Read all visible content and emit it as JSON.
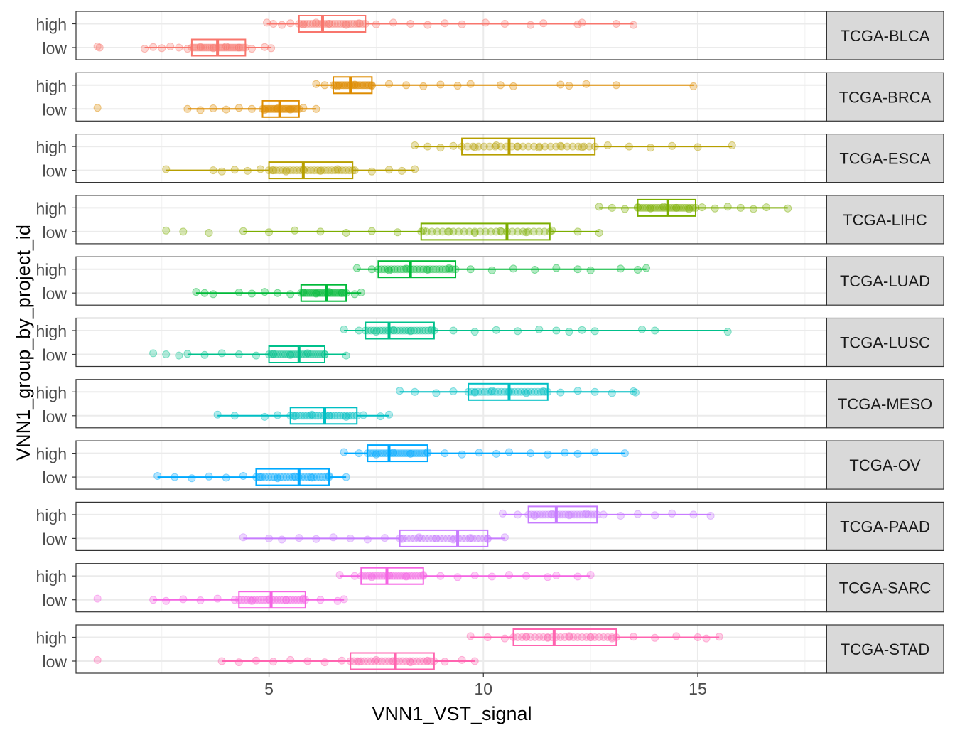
{
  "chart_data": {
    "type": "boxplot",
    "xlabel": "VNN1_VST_signal",
    "ylabel": "VNN1_group_by_project_id",
    "xlim": [
      0.5,
      18.0
    ],
    "xticks": [
      5,
      10,
      15
    ],
    "groups": [
      "high",
      "low"
    ],
    "grid": true,
    "facets": [
      {
        "project": "TCGA-BLCA",
        "color": "#F8766D",
        "high": {
          "q1": 5.7,
          "median": 6.25,
          "q3": 7.25,
          "min": 4.95,
          "max": 13.5,
          "pts": [
            4.95,
            5.1,
            5.3,
            5.5,
            5.8,
            6.1,
            6.4,
            6.8,
            7.1,
            7.5,
            7.9,
            8.3,
            8.7,
            9.1,
            9.5,
            10.05,
            10.5,
            11.1,
            11.4,
            12.2,
            12.3,
            13.1,
            13.5
          ]
        },
        "low": {
          "q1": 3.2,
          "median": 3.8,
          "q3": 4.45,
          "min": 2.1,
          "max": 5.05,
          "pts": [
            1.0,
            1.05,
            2.1,
            2.3,
            2.5,
            2.7,
            2.9,
            3.1,
            3.4,
            3.7,
            4.0,
            4.3,
            4.6,
            4.9,
            5.05
          ]
        }
      },
      {
        "project": "TCGA-BRCA",
        "color": "#DE8C00",
        "high": {
          "q1": 6.5,
          "median": 6.9,
          "q3": 7.4,
          "min": 6.1,
          "max": 14.9,
          "pts": [
            6.1,
            6.3,
            6.6,
            7.0,
            7.4,
            7.8,
            8.2,
            8.6,
            9.0,
            9.4,
            9.7,
            10.4,
            10.7,
            11.8,
            12.0,
            12.4,
            13.1,
            14.9
          ]
        },
        "low": {
          "q1": 4.85,
          "median": 5.25,
          "q3": 5.7,
          "min": 3.1,
          "max": 6.1,
          "pts": [
            1.0,
            3.1,
            3.4,
            3.7,
            4.0,
            4.3,
            4.6,
            4.9,
            5.2,
            5.5,
            5.8,
            6.1
          ]
        },
        "low_min_outlier": 1.0
      },
      {
        "project": "TCGA-ESCA",
        "color": "#B79F00",
        "high": {
          "q1": 9.5,
          "median": 10.6,
          "q3": 12.6,
          "min": 8.4,
          "max": 15.8,
          "pts": [
            8.4,
            8.7,
            9.0,
            9.3,
            9.8,
            10.3,
            10.8,
            11.3,
            11.8,
            12.3,
            12.9,
            13.4,
            13.9,
            14.4,
            15.0,
            15.8
          ]
        },
        "low": {
          "q1": 5.0,
          "median": 5.8,
          "q3": 6.95,
          "min": 2.6,
          "max": 8.4,
          "pts": [
            2.6,
            3.7,
            3.9,
            4.2,
            4.5,
            4.8,
            5.1,
            5.4,
            5.8,
            6.2,
            6.6,
            7.0,
            7.4,
            7.8,
            8.1,
            8.4
          ]
        }
      },
      {
        "project": "TCGA-LIHC",
        "color": "#7CAE00",
        "high": {
          "q1": 13.6,
          "median": 14.3,
          "q3": 14.95,
          "min": 12.7,
          "max": 17.1,
          "pts": [
            12.7,
            13.0,
            13.3,
            13.6,
            13.9,
            14.2,
            14.5,
            14.8,
            15.1,
            15.4,
            15.7,
            16.0,
            16.3,
            16.6,
            17.1
          ]
        },
        "low": {
          "q1": 8.55,
          "median": 10.55,
          "q3": 11.55,
          "min": 4.4,
          "max": 12.7,
          "pts": [
            2.6,
            3.0,
            3.6,
            4.4,
            5.0,
            5.6,
            6.2,
            6.8,
            7.4,
            8.0,
            8.6,
            9.2,
            9.8,
            10.4,
            11.0,
            11.6,
            12.2,
            12.7
          ]
        }
      },
      {
        "project": "TCGA-LUAD",
        "color": "#00BA38",
        "high": {
          "q1": 7.55,
          "median": 8.3,
          "q3": 9.35,
          "min": 7.05,
          "max": 13.8,
          "pts": [
            7.05,
            7.4,
            7.8,
            8.2,
            8.7,
            9.2,
            9.7,
            10.2,
            10.7,
            11.2,
            11.7,
            12.2,
            12.5,
            13.2,
            13.6,
            13.8
          ]
        },
        "low": {
          "q1": 5.75,
          "median": 6.35,
          "q3": 6.8,
          "min": 3.3,
          "max": 7.15,
          "pts": [
            3.3,
            3.5,
            3.7,
            4.3,
            4.6,
            4.9,
            5.2,
            5.5,
            5.8,
            6.1,
            6.4,
            6.7,
            7.0,
            7.15
          ]
        }
      },
      {
        "project": "TCGA-LUSC",
        "color": "#00C08B",
        "high": {
          "q1": 7.25,
          "median": 7.8,
          "q3": 8.85,
          "min": 6.75,
          "max": 15.7,
          "pts": [
            6.75,
            7.1,
            7.5,
            7.9,
            8.3,
            8.8,
            9.3,
            9.8,
            10.3,
            10.8,
            11.3,
            11.7,
            12.0,
            12.3,
            12.6,
            13.7,
            14.0,
            15.7
          ]
        },
        "low": {
          "q1": 5.0,
          "median": 5.7,
          "q3": 6.3,
          "min": 3.1,
          "max": 6.8,
          "pts": [
            2.3,
            2.6,
            2.9,
            3.1,
            3.5,
            3.9,
            4.3,
            4.7,
            5.1,
            5.5,
            5.9,
            6.3,
            6.8
          ]
        }
      },
      {
        "project": "TCGA-MESO",
        "color": "#00BFC4",
        "high": {
          "q1": 9.65,
          "median": 10.6,
          "q3": 11.5,
          "min": 8.05,
          "max": 13.55,
          "pts": [
            8.05,
            8.4,
            8.9,
            9.3,
            9.8,
            10.2,
            10.6,
            11.0,
            11.4,
            11.8,
            12.2,
            12.6,
            13.0,
            13.5,
            13.55
          ]
        },
        "low": {
          "q1": 5.5,
          "median": 6.3,
          "q3": 7.05,
          "min": 3.8,
          "max": 7.8,
          "pts": [
            3.8,
            4.2,
            4.9,
            5.2,
            5.6,
            6.0,
            6.4,
            6.8,
            7.2,
            7.6,
            7.8
          ]
        }
      },
      {
        "project": "TCGA-OV",
        "color": "#00A9FF",
        "high": {
          "q1": 7.3,
          "median": 7.8,
          "q3": 8.7,
          "min": 6.75,
          "max": 13.3,
          "pts": [
            6.75,
            7.1,
            7.5,
            7.9,
            8.3,
            8.7,
            9.1,
            9.5,
            9.9,
            10.3,
            10.6,
            11.1,
            11.5,
            11.9,
            12.2,
            12.6,
            13.3
          ]
        },
        "low": {
          "q1": 4.7,
          "median": 5.7,
          "q3": 6.4,
          "min": 2.4,
          "max": 6.8,
          "pts": [
            2.4,
            2.8,
            3.2,
            3.6,
            4.0,
            4.4,
            4.8,
            5.2,
            5.6,
            6.0,
            6.4,
            6.8
          ]
        }
      },
      {
        "project": "TCGA-PAAD",
        "color": "#C77CFF",
        "high": {
          "q1": 11.05,
          "median": 11.7,
          "q3": 12.65,
          "min": 10.45,
          "max": 15.3,
          "pts": [
            10.45,
            10.8,
            11.2,
            11.6,
            12.0,
            12.4,
            12.8,
            13.2,
            13.6,
            14.0,
            14.4,
            14.9,
            15.3
          ]
        },
        "low": {
          "q1": 8.05,
          "median": 9.4,
          "q3": 10.1,
          "min": 4.4,
          "max": 10.5,
          "pts": [
            4.4,
            5.0,
            5.3,
            5.7,
            6.1,
            6.5,
            6.9,
            7.3,
            7.7,
            8.1,
            8.5,
            8.9,
            9.3,
            9.7,
            10.1,
            10.5
          ]
        }
      },
      {
        "project": "TCGA-SARC",
        "color": "#F564E3",
        "high": {
          "q1": 7.15,
          "median": 7.75,
          "q3": 8.6,
          "min": 6.65,
          "max": 12.5,
          "pts": [
            6.65,
            7.0,
            7.4,
            7.8,
            8.2,
            8.6,
            9.0,
            9.4,
            9.8,
            10.2,
            10.6,
            11.0,
            11.5,
            11.7,
            12.2,
            12.5
          ]
        },
        "low": {
          "q1": 4.3,
          "median": 5.05,
          "q3": 5.85,
          "min": 2.3,
          "max": 6.75,
          "pts": [
            1.0,
            2.3,
            2.6,
            3.0,
            3.4,
            3.8,
            4.2,
            4.6,
            5.0,
            5.4,
            5.8,
            6.2,
            6.6,
            6.75
          ]
        }
      },
      {
        "project": "TCGA-STAD",
        "color": "#FF64B0",
        "high": {
          "q1": 10.7,
          "median": 11.65,
          "q3": 13.1,
          "min": 9.7,
          "max": 15.5,
          "pts": [
            9.7,
            10.1,
            10.5,
            11.0,
            11.5,
            12.0,
            12.5,
            13.0,
            13.5,
            14.0,
            14.5,
            15.0,
            15.2,
            15.5
          ]
        },
        "low": {
          "q1": 6.9,
          "median": 7.95,
          "q3": 8.85,
          "min": 3.9,
          "max": 9.8,
          "pts": [
            1.0,
            3.9,
            4.3,
            4.7,
            5.1,
            5.5,
            5.9,
            6.3,
            6.7,
            7.1,
            7.5,
            7.9,
            8.3,
            8.7,
            9.1,
            9.5,
            9.8
          ]
        }
      }
    ]
  }
}
